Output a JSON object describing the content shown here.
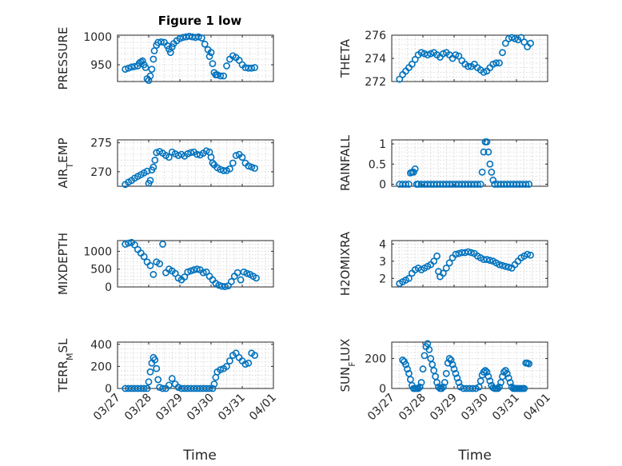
{
  "figure": {
    "title": "Figure 1 low",
    "xlabel": "Time",
    "marker_color": "#0072BD"
  },
  "chart_data": [
    {
      "type": "scatter",
      "id": "pressure",
      "title": "Figure 1 low",
      "ylabel": "PRESSURE",
      "ylabel_sub": "",
      "ylim": [
        920,
        1003
      ],
      "yticks": [
        950,
        1000
      ],
      "xlim": [
        0,
        5
      ],
      "xticks": [
        0,
        1,
        2,
        3,
        4,
        5
      ],
      "xtick_labels": [
        "03/27",
        "03/28",
        "03/29",
        "03/30",
        "03/31",
        "04/01"
      ],
      "show_xtick_labels": false,
      "x": [
        0.25,
        0.35,
        0.45,
        0.55,
        0.65,
        0.7,
        0.75,
        0.8,
        0.85,
        0.9,
        0.95,
        1.0,
        1.05,
        1.1,
        1.15,
        1.18,
        1.25,
        1.3,
        1.4,
        1.5,
        1.6,
        1.65,
        1.7,
        1.75,
        1.8,
        1.9,
        2.0,
        2.1,
        2.2,
        2.3,
        2.4,
        2.5,
        2.6,
        2.7,
        2.8,
        2.9,
        2.95,
        3.0,
        3.05,
        3.1,
        3.15,
        3.2,
        3.3,
        3.4,
        3.5,
        3.6,
        3.7,
        3.8,
        3.9,
        4.0,
        4.1,
        4.2,
        4.3,
        4.4
      ],
      "y": [
        942,
        944,
        946,
        947,
        948,
        953,
        955,
        957,
        950,
        945,
        925,
        922,
        930,
        942,
        960,
        975,
        985,
        990,
        991,
        990,
        984,
        978,
        972,
        982,
        988,
        993,
        997,
        999,
        1000,
        1001,
        1000,
        999,
        1000,
        998,
        987,
        977,
        965,
        972,
        952,
        936,
        932,
        932,
        930,
        930,
        948,
        960,
        966,
        963,
        958,
        950,
        945,
        944,
        944,
        945
      ]
    },
    {
      "type": "scatter",
      "id": "theta",
      "ylabel": "THETA",
      "ylabel_sub": "",
      "ylim": [
        272,
        276
      ],
      "yticks": [
        272,
        274,
        276
      ],
      "xlim": [
        0,
        5
      ],
      "xticks": [
        0,
        1,
        2,
        3,
        4,
        5
      ],
      "xtick_labels": [
        "03/27",
        "03/28",
        "03/29",
        "03/30",
        "03/31",
        "04/01"
      ],
      "show_xtick_labels": false,
      "x": [
        0.25,
        0.35,
        0.45,
        0.55,
        0.65,
        0.75,
        0.85,
        0.95,
        1.05,
        1.15,
        1.25,
        1.35,
        1.45,
        1.55,
        1.65,
        1.75,
        1.85,
        1.95,
        2.05,
        2.15,
        2.25,
        2.35,
        2.45,
        2.55,
        2.65,
        2.75,
        2.85,
        2.95,
        3.05,
        3.15,
        3.25,
        3.35,
        3.45,
        3.55,
        3.65,
        3.75,
        3.85,
        3.95,
        4.05,
        4.15,
        4.25,
        4.35,
        4.45
      ],
      "y": [
        272.2,
        272.6,
        272.9,
        273.2,
        273.5,
        273.9,
        274.3,
        274.5,
        274.4,
        274.3,
        274.4,
        274.5,
        274.3,
        274.1,
        274.4,
        274.5,
        274.3,
        274.0,
        274.3,
        274.2,
        273.8,
        273.5,
        273.3,
        273.3,
        273.5,
        273.2,
        273.0,
        272.8,
        272.9,
        273.2,
        273.5,
        273.6,
        273.6,
        274.5,
        275.3,
        275.7,
        275.8,
        275.7,
        275.6,
        275.8,
        275.4,
        275.0,
        275.3
      ]
    },
    {
      "type": "scatter",
      "id": "air_temp",
      "ylabel": "AIR",
      "ylabel_sub": "T",
      "ylabel_rest": "EMP",
      "ylim": [
        267.5,
        275.5
      ],
      "yticks": [
        270,
        275
      ],
      "xlim": [
        0,
        5
      ],
      "xticks": [
        0,
        1,
        2,
        3,
        4,
        5
      ],
      "xtick_labels": [
        "03/27",
        "03/28",
        "03/29",
        "03/30",
        "03/31",
        "04/01"
      ],
      "show_xtick_labels": false,
      "x": [
        0.25,
        0.35,
        0.45,
        0.55,
        0.65,
        0.75,
        0.85,
        0.95,
        1.0,
        1.05,
        1.1,
        1.15,
        1.2,
        1.25,
        1.35,
        1.45,
        1.55,
        1.65,
        1.75,
        1.85,
        1.95,
        2.05,
        2.15,
        2.25,
        2.35,
        2.45,
        2.55,
        2.65,
        2.75,
        2.85,
        2.95,
        3.0,
        3.05,
        3.1,
        3.2,
        3.3,
        3.4,
        3.5,
        3.6,
        3.7,
        3.8,
        3.9,
        4.0,
        4.1,
        4.2,
        4.3,
        4.4
      ],
      "y": [
        267.8,
        268.2,
        268.5,
        268.9,
        269.2,
        269.5,
        269.8,
        270.1,
        268.0,
        268.5,
        270.3,
        270.8,
        272.0,
        273.3,
        273.5,
        273.2,
        272.8,
        272.5,
        273.4,
        273.1,
        272.8,
        273.0,
        272.7,
        273.1,
        273.3,
        273.4,
        273.0,
        272.9,
        273.2,
        273.6,
        273.4,
        272.5,
        271.5,
        271.2,
        270.7,
        270.4,
        270.2,
        270.2,
        270.5,
        271.5,
        272.8,
        273.0,
        272.5,
        271.5,
        271.0,
        270.8,
        270.6
      ]
    },
    {
      "type": "scatter",
      "id": "rainfall",
      "ylabel": "RAINFALL",
      "ylabel_sub": "",
      "ylim": [
        -0.05,
        1.1
      ],
      "yticks": [
        0,
        0.5,
        1
      ],
      "xlim": [
        0,
        5
      ],
      "xticks": [
        0,
        1,
        2,
        3,
        4,
        5
      ],
      "xtick_labels": [
        "03/27",
        "03/28",
        "03/29",
        "03/30",
        "03/31",
        "04/01"
      ],
      "show_xtick_labels": false,
      "x": [
        0.25,
        0.35,
        0.45,
        0.55,
        0.6,
        0.65,
        0.7,
        0.75,
        0.8,
        0.85,
        0.95,
        1.05,
        1.15,
        1.25,
        1.35,
        1.45,
        1.55,
        1.65,
        1.75,
        1.85,
        1.95,
        2.05,
        2.15,
        2.25,
        2.35,
        2.45,
        2.55,
        2.65,
        2.75,
        2.85,
        2.9,
        2.95,
        3.0,
        3.05,
        3.1,
        3.15,
        3.2,
        3.25,
        3.3,
        3.4,
        3.5,
        3.6,
        3.7,
        3.8,
        3.9,
        4.0,
        4.1,
        4.2,
        4.3,
        4.4
      ],
      "y": [
        0,
        0,
        0,
        0,
        0.28,
        0.3,
        0.3,
        0.38,
        0,
        0,
        0,
        0,
        0,
        0,
        0,
        0,
        0,
        0,
        0,
        0,
        0,
        0,
        0,
        0,
        0,
        0,
        0,
        0,
        0,
        0,
        0.3,
        0.8,
        1.05,
        1.05,
        0.8,
        0.5,
        0.3,
        0.1,
        0,
        0,
        0,
        0,
        0,
        0,
        0,
        0,
        0,
        0,
        0,
        0
      ]
    },
    {
      "type": "scatter",
      "id": "mixdepth",
      "ylabel": "MIXDEPTH",
      "ylabel_sub": "",
      "ylim": [
        0,
        1300
      ],
      "yticks": [
        0,
        500,
        1000
      ],
      "xlim": [
        0,
        5
      ],
      "xticks": [
        0,
        1,
        2,
        3,
        4,
        5
      ],
      "xtick_labels": [
        "03/27",
        "03/28",
        "03/29",
        "03/30",
        "03/31",
        "04/01"
      ],
      "show_xtick_labels": false,
      "x": [
        0.25,
        0.35,
        0.45,
        0.55,
        0.65,
        0.75,
        0.85,
        0.95,
        1.05,
        1.15,
        1.25,
        1.35,
        1.45,
        1.55,
        1.65,
        1.75,
        1.85,
        1.95,
        2.05,
        2.15,
        2.25,
        2.35,
        2.45,
        2.55,
        2.65,
        2.75,
        2.85,
        2.95,
        3.05,
        3.15,
        3.25,
        3.35,
        3.45,
        3.55,
        3.65,
        3.75,
        3.85,
        3.95,
        4.05,
        4.15,
        4.25,
        4.35,
        4.45
      ],
      "y": [
        1200,
        1230,
        1250,
        1180,
        1050,
        950,
        850,
        700,
        600,
        350,
        700,
        650,
        1200,
        400,
        500,
        450,
        380,
        250,
        200,
        280,
        420,
        450,
        480,
        500,
        480,
        400,
        420,
        300,
        200,
        100,
        50,
        20,
        10,
        30,
        150,
        300,
        400,
        200,
        420,
        380,
        350,
        300,
        250
      ]
    },
    {
      "type": "scatter",
      "id": "h2omixra",
      "ylabel": "H2OMIXRA",
      "ylabel_sub": "",
      "ylim": [
        1.5,
        4.2
      ],
      "yticks": [
        2,
        3,
        4
      ],
      "xlim": [
        0,
        5
      ],
      "xticks": [
        0,
        1,
        2,
        3,
        4,
        5
      ],
      "xtick_labels": [
        "03/27",
        "03/28",
        "03/29",
        "03/30",
        "03/31",
        "04/01"
      ],
      "show_xtick_labels": false,
      "x": [
        0.25,
        0.35,
        0.45,
        0.55,
        0.65,
        0.75,
        0.85,
        0.95,
        1.05,
        1.15,
        1.25,
        1.35,
        1.45,
        1.5,
        1.55,
        1.65,
        1.75,
        1.85,
        1.95,
        2.05,
        2.15,
        2.25,
        2.35,
        2.45,
        2.55,
        2.65,
        2.75,
        2.85,
        2.95,
        3.05,
        3.15,
        3.25,
        3.35,
        3.45,
        3.55,
        3.65,
        3.75,
        3.85,
        3.95,
        4.05,
        4.15,
        4.25,
        4.35,
        4.45
      ],
      "y": [
        1.7,
        1.8,
        1.9,
        2.0,
        2.3,
        2.5,
        2.6,
        2.5,
        2.6,
        2.7,
        2.8,
        3.0,
        3.3,
        2.4,
        2.1,
        2.3,
        2.6,
        2.9,
        3.2,
        3.4,
        3.45,
        3.5,
        3.5,
        3.55,
        3.5,
        3.45,
        3.3,
        3.2,
        3.1,
        3.1,
        3.05,
        3.0,
        2.9,
        2.8,
        2.75,
        2.7,
        2.65,
        2.6,
        2.8,
        3.0,
        3.2,
        3.3,
        3.4,
        3.35
      ]
    },
    {
      "type": "scatter",
      "id": "terr_msl",
      "ylabel": "TERR",
      "ylabel_sub": "M",
      "ylabel_rest": "SL",
      "ylim": [
        0,
        420
      ],
      "yticks": [
        0,
        200,
        400
      ],
      "xlim": [
        0,
        5
      ],
      "xticks": [
        0,
        1,
        2,
        3,
        4,
        5
      ],
      "xtick_labels": [
        "03/27",
        "03/28",
        "03/29",
        "03/30",
        "03/31",
        "04/01"
      ],
      "show_xtick_labels": true,
      "x": [
        0.25,
        0.35,
        0.45,
        0.55,
        0.65,
        0.75,
        0.85,
        0.95,
        1.0,
        1.05,
        1.1,
        1.15,
        1.2,
        1.25,
        1.3,
        1.35,
        1.45,
        1.55,
        1.65,
        1.75,
        1.85,
        1.95,
        2.05,
        2.15,
        2.25,
        2.35,
        2.45,
        2.55,
        2.65,
        2.75,
        2.85,
        2.95,
        3.05,
        3.1,
        3.15,
        3.2,
        3.3,
        3.4,
        3.5,
        3.6,
        3.7,
        3.8,
        3.9,
        4.0,
        4.1,
        4.2,
        4.3,
        4.4
      ],
      "y": [
        0,
        0,
        0,
        0,
        0,
        0,
        0,
        0,
        60,
        150,
        230,
        280,
        260,
        180,
        80,
        10,
        0,
        0,
        30,
        90,
        40,
        10,
        0,
        0,
        0,
        0,
        0,
        0,
        0,
        0,
        0,
        0,
        0,
        40,
        100,
        150,
        170,
        180,
        200,
        250,
        300,
        320,
        280,
        250,
        220,
        230,
        320,
        300
      ]
    },
    {
      "type": "scatter",
      "id": "sun_flux",
      "ylabel": "SUN",
      "ylabel_sub": "F",
      "ylabel_rest": "LUX",
      "ylim": [
        0,
        310
      ],
      "yticks": [
        0,
        200
      ],
      "xlim": [
        0,
        5
      ],
      "xticks": [
        0,
        1,
        2,
        3,
        4,
        5
      ],
      "xtick_labels": [
        "03/27",
        "03/28",
        "03/29",
        "03/30",
        "03/31",
        "04/01"
      ],
      "show_xtick_labels": true,
      "x": [
        0.35,
        0.4,
        0.45,
        0.5,
        0.55,
        0.6,
        0.65,
        0.7,
        0.75,
        0.8,
        0.85,
        0.9,
        0.95,
        1.0,
        1.05,
        1.1,
        1.15,
        1.2,
        1.25,
        1.3,
        1.35,
        1.4,
        1.45,
        1.5,
        1.55,
        1.6,
        1.65,
        1.7,
        1.75,
        1.8,
        1.85,
        1.9,
        1.95,
        2.0,
        2.05,
        2.1,
        2.15,
        2.2,
        2.3,
        2.4,
        2.5,
        2.6,
        2.7,
        2.8,
        2.85,
        2.9,
        2.95,
        3.0,
        3.05,
        3.1,
        3.15,
        3.2,
        3.25,
        3.3,
        3.35,
        3.4,
        3.45,
        3.5,
        3.55,
        3.6,
        3.65,
        3.7,
        3.75,
        3.8,
        3.85,
        3.9,
        3.95,
        4.0,
        4.05,
        4.1,
        4.15,
        4.2,
        4.25,
        4.3,
        4.35,
        4.4
      ],
      "y": [
        190,
        180,
        160,
        130,
        100,
        60,
        20,
        0,
        0,
        0,
        0,
        10,
        40,
        130,
        220,
        280,
        300,
        260,
        200,
        160,
        120,
        80,
        40,
        10,
        0,
        0,
        10,
        40,
        100,
        170,
        200,
        190,
        160,
        130,
        100,
        70,
        40,
        10,
        0,
        0,
        0,
        0,
        0,
        10,
        50,
        90,
        110,
        120,
        110,
        80,
        50,
        20,
        5,
        0,
        0,
        0,
        10,
        40,
        80,
        110,
        120,
        100,
        70,
        40,
        10,
        0,
        0,
        0,
        0,
        0,
        0,
        0,
        0,
        170,
        170,
        165
      ]
    }
  ]
}
